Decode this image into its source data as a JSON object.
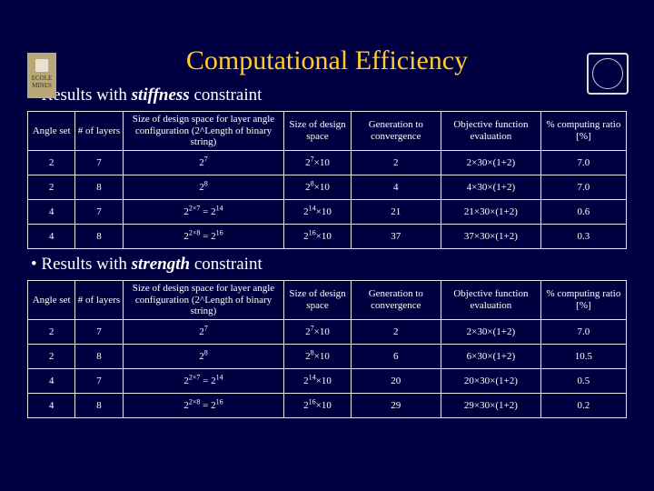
{
  "title": "Computational Efficiency",
  "bullet1_pre": "Results with ",
  "bullet1_em": "stiffness",
  "bullet1_post": " constraint",
  "bullet2_pre": "Results with ",
  "bullet2_em": "strength",
  "bullet2_post": " constraint",
  "headers": {
    "h1": "Angle set",
    "h2": "# of layers",
    "h3": "Size of design space for layer angle configuration (2^Length of binary string)",
    "h4": "Size of design space",
    "h5": "Generation to convergence",
    "h6": "Objective function evaluation",
    "h7": "% computing ratio [%]"
  },
  "t1": {
    "rows": [
      {
        "a": "2",
        "b": "7",
        "c": "2<sup>7</sup>",
        "d": "2<sup>7</sup>×10",
        "e": "2",
        "f": "2×30×(1+2)",
        "g": "7.0"
      },
      {
        "a": "2",
        "b": "8",
        "c": "2<sup>8</sup>",
        "d": "2<sup>8</sup>×10",
        "e": "4",
        "f": "4×30×(1+2)",
        "g": "7.0"
      },
      {
        "a": "4",
        "b": "7",
        "c": "2<sup>2×7</sup> = 2<sup>14</sup>",
        "d": "2<sup>14</sup>×10",
        "e": "21",
        "f": "21×30×(1+2)",
        "g": "0.6"
      },
      {
        "a": "4",
        "b": "8",
        "c": "2<sup>2×8</sup> = 2<sup>16</sup>",
        "d": "2<sup>16</sup>×10",
        "e": "37",
        "f": "37×30×(1+2)",
        "g": "0.3"
      }
    ]
  },
  "t2": {
    "rows": [
      {
        "a": "2",
        "b": "7",
        "c": "2<sup>7</sup>",
        "d": "2<sup>7</sup>×10",
        "e": "2",
        "f": "2×30×(1+2)",
        "g": "7.0"
      },
      {
        "a": "2",
        "b": "8",
        "c": "2<sup>8</sup>",
        "d": "2<sup>8</sup>×10",
        "e": "6",
        "f": "6×30×(1+2)",
        "g": "10.5"
      },
      {
        "a": "4",
        "b": "7",
        "c": "2<sup>2×7</sup> = 2<sup>14</sup>",
        "d": "2<sup>14</sup>×10",
        "e": "20",
        "f": "20×30×(1+2)",
        "g": "0.5"
      },
      {
        "a": "4",
        "b": "8",
        "c": "2<sup>2×8</sup> = 2<sup>16</sup>",
        "d": "2<sup>16</sup>×10",
        "e": "29",
        "f": "29×30×(1+2)",
        "g": "0.2"
      }
    ]
  },
  "style": {
    "background": "#000040",
    "title_color": "#ffcc33",
    "text_color": "#ffffff",
    "border_color": "#e8e8e8",
    "title_fontsize": 30,
    "body_fontsize": 19,
    "cell_fontsize": 11
  }
}
